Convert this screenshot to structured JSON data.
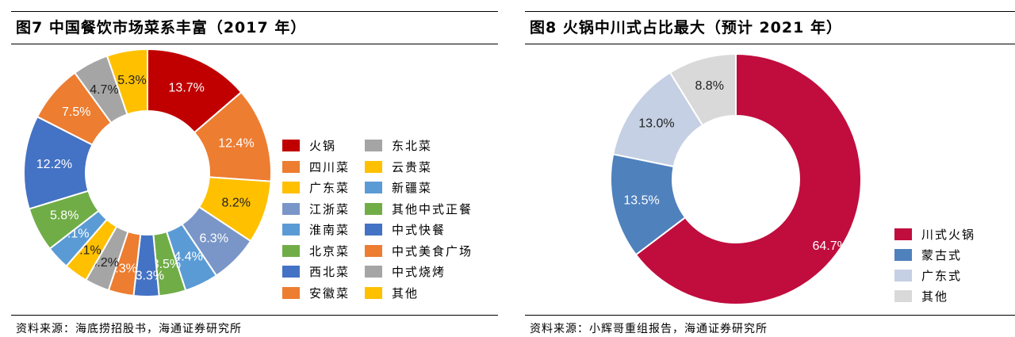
{
  "left": {
    "title": "图7  中国餐饮市场菜系丰富（2017 年）",
    "source": "资料来源：海底捞招股书，海通证券研究所"
  },
  "right": {
    "title": "图8  火锅中川式占比最大（预计 2021 年）",
    "source": "资料来源：小辉哥重组报告，海通证券研究所"
  },
  "chart_data": [
    {
      "type": "pie",
      "donut": true,
      "title": "图7  中国餐饮市场菜系丰富（2017 年）",
      "legend_position": "right",
      "slices": [
        {
          "label": "火锅",
          "value": 13.7,
          "value_label": "13.7%",
          "color": "#c00000"
        },
        {
          "label": "四川菜",
          "value": 12.4,
          "value_label": "12.4%",
          "color": "#ed7d31"
        },
        {
          "label": "广东菜",
          "value": 8.2,
          "value_label": "8.2%",
          "color": "#ffc000"
        },
        {
          "label": "江浙菜",
          "value": 6.3,
          "value_label": "6.3%",
          "color": "#7a96c8"
        },
        {
          "label": "淮南菜",
          "value": 4.4,
          "value_label": "4.4%",
          "color": "#5b9bd5"
        },
        {
          "label": "北京菜",
          "value": 3.5,
          "value_label": "3.5%",
          "color": "#70ad47"
        },
        {
          "label": "西北菜",
          "value": 3.3,
          "value_label": "3.3%",
          "color": "#4472c4"
        },
        {
          "label": "安徽菜",
          "value": 3.3,
          "value_label": "3.3%",
          "color": "#ed7d31"
        },
        {
          "label": "东北菜",
          "value": 3.2,
          "value_label": "3.2%",
          "color": "#a5a5a5"
        },
        {
          "label": "云贵菜",
          "value": 3.1,
          "value_label": "3.1%",
          "color": "#ffc000"
        },
        {
          "label": "新疆菜",
          "value": 3.1,
          "value_label": "3.1%",
          "color": "#5b9bd5"
        },
        {
          "label": "其他中式正餐",
          "value": 5.8,
          "value_label": "5.8%",
          "color": "#70ad47"
        },
        {
          "label": "中式快餐",
          "value": 12.2,
          "value_label": "12.2%",
          "color": "#4472c4"
        },
        {
          "label": "中式美食广场",
          "value": 7.5,
          "value_label": "7.5%",
          "color": "#ed7d31"
        },
        {
          "label": "中式烧烤",
          "value": 4.7,
          "value_label": "4.7%",
          "color": "#a5a5a5"
        },
        {
          "label": "其他",
          "value": 5.3,
          "value_label": "5.3%",
          "color": "#ffc000"
        }
      ]
    },
    {
      "type": "pie",
      "donut": true,
      "title": "图8  火锅中川式占比最大（预计 2021 年）",
      "legend_position": "bottom-right",
      "slices": [
        {
          "label": "川式火锅",
          "value": 64.7,
          "value_label": "64.7%",
          "color": "#c00d3e"
        },
        {
          "label": "蒙古式",
          "value": 13.5,
          "value_label": "13.5%",
          "color": "#4f81bd"
        },
        {
          "label": "广东式",
          "value": 13.0,
          "value_label": "13.0%",
          "color": "#c5d0e4"
        },
        {
          "label": "其他",
          "value": 8.8,
          "value_label": "8.8%",
          "color": "#d9d9d9"
        }
      ]
    }
  ]
}
